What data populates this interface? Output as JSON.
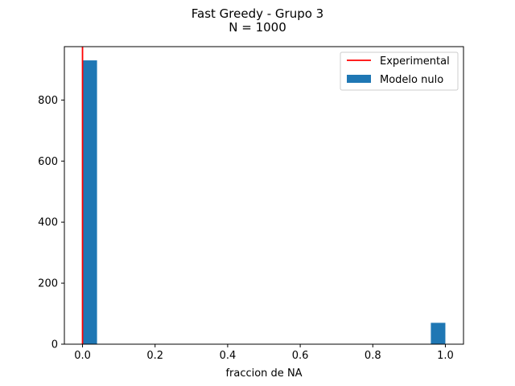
{
  "chart_data": {
    "type": "bar",
    "title": "Fast Greedy - Grupo 3",
    "subtitle": "N = 1000",
    "xlabel": "fraccion de NA",
    "ylabel": "",
    "xlim": [
      -0.05,
      1.05
    ],
    "ylim": [
      0,
      975
    ],
    "x_ticks": [
      0.0,
      0.2,
      0.4,
      0.6,
      0.8,
      1.0
    ],
    "x_tick_labels": [
      "0.0",
      "0.2",
      "0.4",
      "0.6",
      "0.8",
      "1.0"
    ],
    "y_ticks": [
      0,
      200,
      400,
      600,
      800
    ],
    "y_tick_labels": [
      "0",
      "200",
      "400",
      "600",
      "800"
    ],
    "grid": false,
    "legend_position": "top-right",
    "series": [
      {
        "name": "Modelo nulo",
        "kind": "histogram",
        "color": "#1f77b4",
        "bins": [
          {
            "x0": 0.0,
            "x1": 0.04,
            "count": 930
          },
          {
            "x0": 0.96,
            "x1": 1.0,
            "count": 70
          }
        ]
      },
      {
        "name": "Experimental",
        "kind": "vertical-line",
        "color": "#ff0000",
        "x": 0.0
      }
    ]
  }
}
